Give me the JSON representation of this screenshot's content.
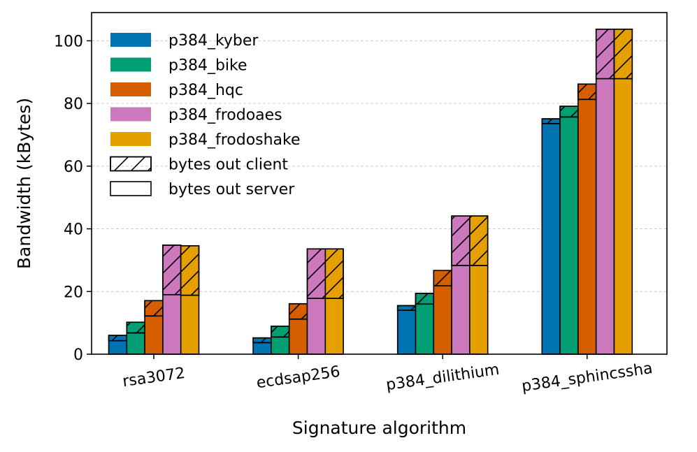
{
  "chart_data": {
    "type": "bar",
    "stacked": true,
    "title": "",
    "xlabel": "Signature algorithm",
    "ylabel": "Bandwidth (kBytes)",
    "ylim": [
      0,
      109
    ],
    "yticks": [
      0,
      20,
      40,
      60,
      80,
      100
    ],
    "grid": "y-dashed",
    "legend_position": "top-left",
    "categories": [
      "rsa3072",
      "ecdsap256",
      "p384_dilithium",
      "p384_sphincssha"
    ],
    "stack_parts": [
      {
        "name": "bytes out client",
        "pattern": "hatched"
      },
      {
        "name": "bytes out server",
        "pattern": "plain"
      }
    ],
    "series": [
      {
        "name": "p384_kyber",
        "color": "#0173B2",
        "server": [
          4.3,
          3.7,
          14.0,
          73.6
        ],
        "client": [
          1.7,
          1.5,
          1.5,
          1.5
        ]
      },
      {
        "name": "p384_bike",
        "color": "#029E73",
        "server": [
          6.8,
          5.5,
          16.0,
          75.7
        ],
        "client": [
          3.4,
          3.4,
          3.4,
          3.4
        ]
      },
      {
        "name": "p384_hqc",
        "color": "#D55E00",
        "server": [
          12.2,
          11.2,
          21.8,
          81.3
        ],
        "client": [
          4.9,
          4.9,
          4.9,
          4.9
        ]
      },
      {
        "name": "p384_frodoaes",
        "color": "#CC78BC",
        "server": [
          19.0,
          17.8,
          28.3,
          87.9
        ],
        "client": [
          15.8,
          15.8,
          15.8,
          15.8
        ]
      },
      {
        "name": "p384_frodoshake",
        "color": "#E5A000",
        "server": [
          18.8,
          17.8,
          28.3,
          87.9
        ],
        "client": [
          15.8,
          15.8,
          15.8,
          15.8
        ]
      }
    ]
  }
}
